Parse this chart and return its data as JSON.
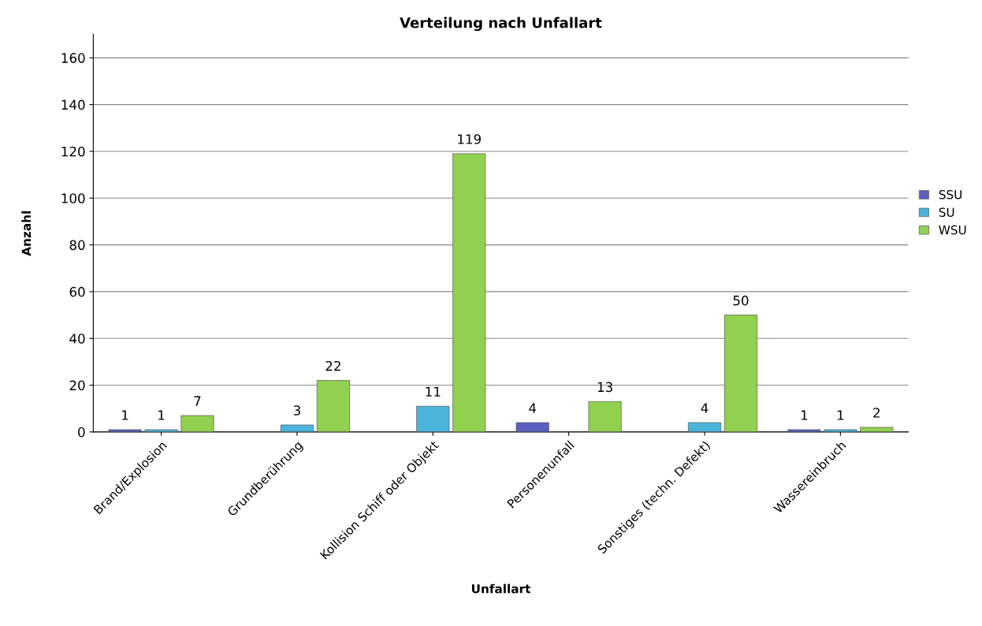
{
  "chart_data": {
    "type": "bar",
    "title": "Verteilung nach Unfallart",
    "xlabel": "Unfallart",
    "ylabel": "Anzahl",
    "categories": [
      "Brand/Explosion",
      "Grundberührung",
      "Kollision Schiff oder Objekt",
      "Personenunfall",
      "Sonstiges (techn. Defekt)",
      "Wassereinbruch"
    ],
    "series": [
      {
        "name": "SSU",
        "color": "#5a5fc0",
        "values": [
          1,
          null,
          null,
          4,
          null,
          1
        ]
      },
      {
        "name": "SU",
        "color": "#4ab4dc",
        "values": [
          1,
          3,
          11,
          null,
          4,
          1
        ]
      },
      {
        "name": "WSU",
        "color": "#92d050",
        "values": [
          7,
          22,
          119,
          13,
          50,
          2
        ]
      }
    ],
    "ylim": [
      0,
      170
    ],
    "yticks": [
      0,
      20,
      40,
      60,
      80,
      100,
      120,
      140,
      160
    ],
    "grid": "y",
    "legend": "right",
    "data_labels": true
  }
}
